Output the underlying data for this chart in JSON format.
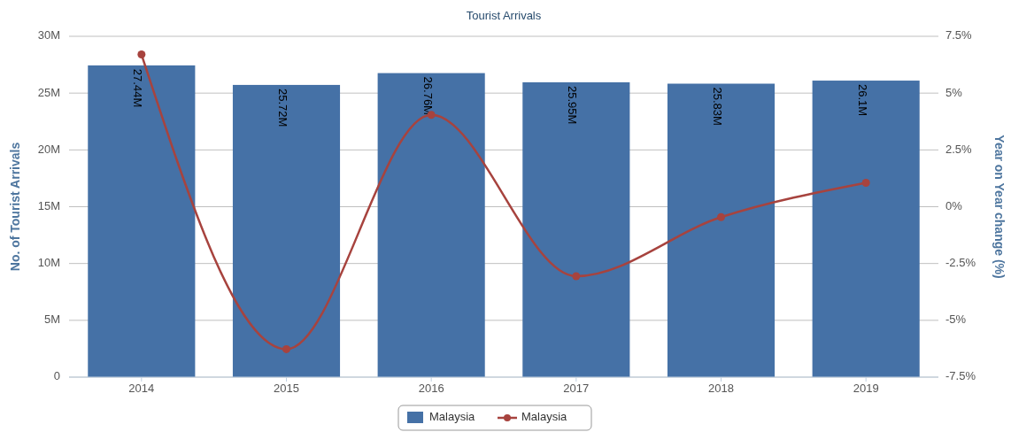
{
  "chart_data": {
    "type": "bar",
    "title": "Tourist Arrivals",
    "ylabel": "No. of Tourist Arrivals",
    "y2label": "Year on Year change (%)",
    "categories": [
      "2014",
      "2015",
      "2016",
      "2017",
      "2018",
      "2019"
    ],
    "series": [
      {
        "name": "Malaysia",
        "color": "#4571a6",
        "values": [
          27.44,
          25.72,
          26.76,
          25.95,
          25.83,
          26.1
        ],
        "value_labels": [
          "27.44M",
          "25.72M",
          "26.76M",
          "25.95M",
          "25.83M",
          "26.1M"
        ]
      },
      {
        "name": "Malaysia",
        "type": "line",
        "axis": "y2",
        "color": "#a7433e",
        "marker": "circle",
        "values": [
          6.7,
          -6.27,
          4.04,
          -3.06,
          -0.46,
          1.05
        ]
      }
    ],
    "ylim": [
      0,
      30
    ],
    "yticks": [
      {
        "value": 0,
        "label": "0"
      },
      {
        "value": 5,
        "label": "5M"
      },
      {
        "value": 10,
        "label": "10M"
      },
      {
        "value": 15,
        "label": "15M"
      },
      {
        "value": 20,
        "label": "20M"
      },
      {
        "value": 25,
        "label": "25M"
      },
      {
        "value": 30,
        "label": "30M"
      }
    ],
    "y2lim": [
      -7.5,
      7.5
    ],
    "y2ticks": [
      {
        "value": -7.5,
        "label": "-7.5%"
      },
      {
        "value": -5,
        "label": "-5%"
      },
      {
        "value": -2.5,
        "label": "-2.5%"
      },
      {
        "value": 0,
        "label": "0%"
      },
      {
        "value": 2.5,
        "label": "2.5%"
      },
      {
        "value": 5,
        "label": "5%"
      },
      {
        "value": 7.5,
        "label": "7.5%"
      }
    ],
    "grid": "y",
    "legend": "bottom"
  }
}
